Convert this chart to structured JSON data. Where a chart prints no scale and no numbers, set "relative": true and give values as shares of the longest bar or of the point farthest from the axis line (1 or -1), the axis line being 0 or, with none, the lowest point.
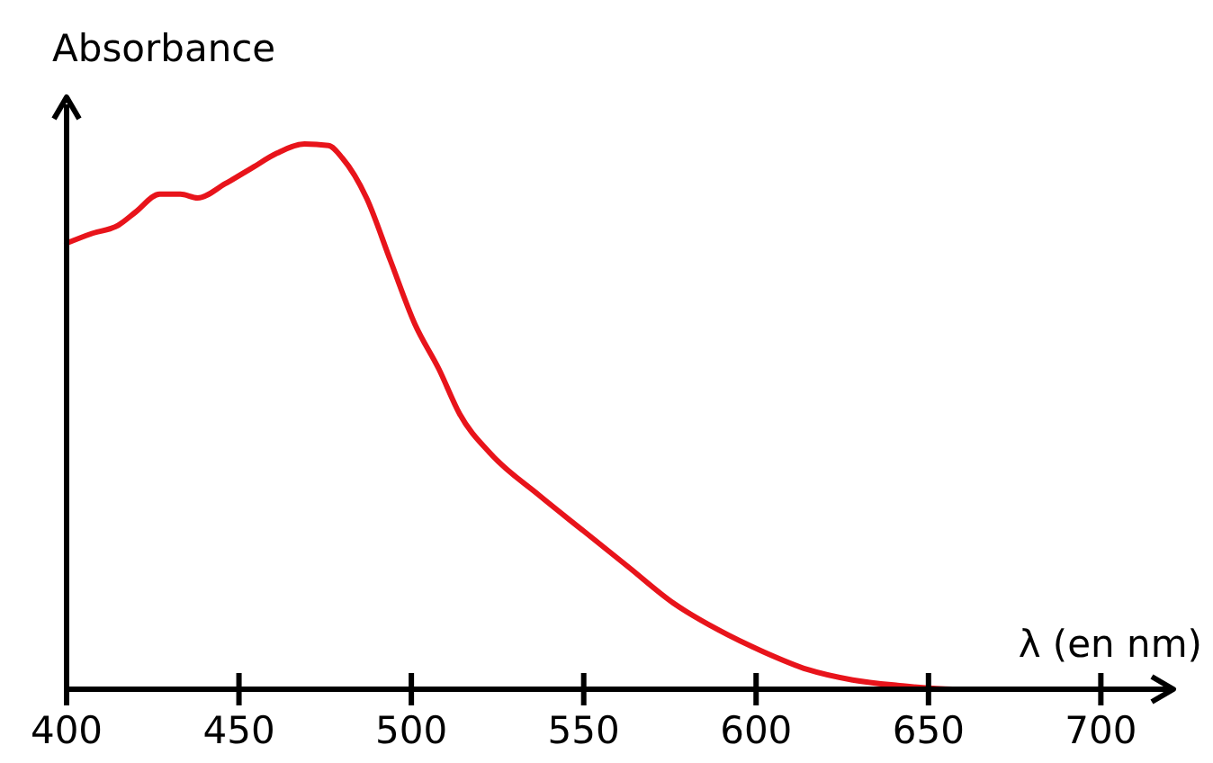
{
  "chart_data": {
    "type": "line",
    "relative": true,
    "xlabel": "λ (en nm)",
    "ylabel": "Absorbance",
    "xlim": [
      400,
      720
    ],
    "xticks": [
      400,
      450,
      500,
      550,
      600,
      650,
      700
    ],
    "line_style": "solid",
    "series": [
      {
        "color": "#e8141b",
        "x": [
          400,
          407,
          415,
          420,
          427,
          433,
          438,
          446,
          454,
          461,
          469,
          476,
          480,
          487,
          494,
          501,
          508,
          514,
          523,
          537,
          550,
          563,
          576,
          589,
          602,
          615,
          628,
          641,
          657,
          700
        ],
        "values": [
          0.818,
          0.835,
          0.851,
          0.875,
          0.908,
          0.908,
          0.901,
          0.927,
          0.957,
          0.983,
          1.0,
          0.997,
          0.974,
          0.901,
          0.785,
          0.67,
          0.587,
          0.505,
          0.432,
          0.356,
          0.29,
          0.224,
          0.158,
          0.109,
          0.069,
          0.036,
          0.017,
          0.007,
          0,
          0
        ]
      }
    ]
  }
}
